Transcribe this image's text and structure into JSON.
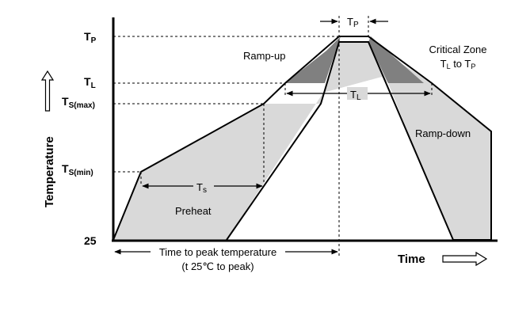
{
  "diagram": {
    "y_axis": {
      "title": "Temperature",
      "ticks": [
        {
          "main": "T",
          "sub": "P"
        },
        {
          "main": "T",
          "sub": "L"
        },
        {
          "main": "T",
          "sub": "S(max)"
        },
        {
          "main": "T",
          "sub": "S(min)"
        },
        {
          "main": "25",
          "sub": ""
        }
      ]
    },
    "x_axis": {
      "title": "Time"
    },
    "annotations": {
      "ramp_up": "Ramp-up",
      "ramp_down": "Ramp-down",
      "preheat": "Preheat",
      "critical_zone_line1": "Critical Zone",
      "critical_zone_line2": {
        "t1": "T",
        "s1": "L",
        "mid": " to T",
        "s2": "P"
      },
      "tp_dimension": {
        "main": "T",
        "sub": "P"
      },
      "tl_dimension": {
        "main": "T",
        "sub": "L"
      },
      "ts_dimension": {
        "main": "T",
        "sub": "s"
      },
      "time_to_peak_line1": "Time to peak temperature",
      "time_to_peak_line2": "(t 25℃ to peak)"
    },
    "colors": {
      "light_region": "#d9d9d9",
      "critical_region": "#808080",
      "line": "#000000"
    }
  }
}
